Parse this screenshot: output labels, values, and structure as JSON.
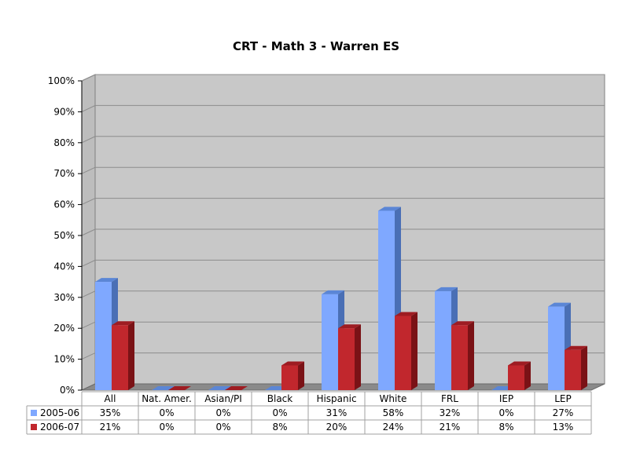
{
  "chart_data": {
    "type": "bar",
    "title": "CRT - Math 3 - Warren ES",
    "categories": [
      "All",
      "Nat. Amer.",
      "Asian/PI",
      "Black",
      "Hispanic",
      "White",
      "FRL",
      "IEP",
      "LEP"
    ],
    "series": [
      {
        "name": "2005-06",
        "values": [
          35,
          0,
          0,
          0,
          31,
          58,
          32,
          0,
          27
        ],
        "labels": [
          "35%",
          "0%",
          "0%",
          "0%",
          "31%",
          "58%",
          "32%",
          "0%",
          "27%"
        ],
        "color": "#7fa8ff",
        "side_color": "#4a6fb5",
        "top_color": "#5b86d6"
      },
      {
        "name": "2006-07",
        "values": [
          21,
          0,
          0,
          8,
          20,
          24,
          21,
          8,
          13
        ],
        "labels": [
          "21%",
          "0%",
          "0%",
          "8%",
          "20%",
          "24%",
          "21%",
          "8%",
          "13%"
        ],
        "color": "#c1272d",
        "side_color": "#7a1216",
        "top_color": "#9e1c22"
      }
    ],
    "ylim": [
      0,
      100
    ],
    "ytick_step": 10,
    "ytick_labels": [
      "0%",
      "10%",
      "20%",
      "30%",
      "40%",
      "50%",
      "60%",
      "70%",
      "80%",
      "90%",
      "100%"
    ],
    "grid": true,
    "legend": "data-table",
    "plot_background": "#c8c8c8"
  }
}
